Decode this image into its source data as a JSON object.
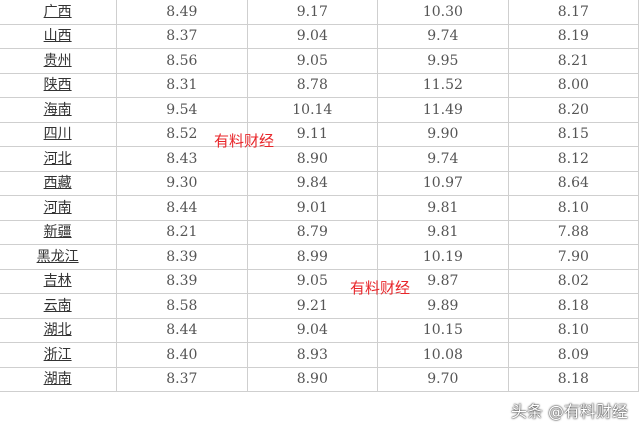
{
  "table": {
    "rows": [
      {
        "name": "广西",
        "values": [
          "8.49",
          "9.17",
          "10.30",
          "8.17"
        ]
      },
      {
        "name": "山西",
        "values": [
          "8.37",
          "9.04",
          "9.74",
          "8.19"
        ]
      },
      {
        "name": "贵州",
        "values": [
          "8.56",
          "9.05",
          "9.95",
          "8.21"
        ]
      },
      {
        "name": "陕西",
        "values": [
          "8.31",
          "8.78",
          "11.52",
          "8.00"
        ]
      },
      {
        "name": "海南",
        "values": [
          "9.54",
          "10.14",
          "11.49",
          "8.20"
        ]
      },
      {
        "name": "四川",
        "values": [
          "8.52",
          "9.11",
          "9.90",
          "8.15"
        ]
      },
      {
        "name": "河北",
        "values": [
          "8.43",
          "8.90",
          "9.74",
          "8.12"
        ]
      },
      {
        "name": "西藏",
        "values": [
          "9.30",
          "9.84",
          "10.97",
          "8.64"
        ]
      },
      {
        "name": "河南",
        "values": [
          "8.44",
          "9.01",
          "9.81",
          "8.10"
        ]
      },
      {
        "name": "新疆",
        "values": [
          "8.21",
          "8.79",
          "9.81",
          "7.88"
        ]
      },
      {
        "name": "黑龙江",
        "values": [
          "8.39",
          "8.99",
          "10.19",
          "7.90"
        ]
      },
      {
        "name": "吉林",
        "values": [
          "8.39",
          "9.05",
          "9.87",
          "8.02"
        ]
      },
      {
        "name": "云南",
        "values": [
          "8.58",
          "9.21",
          "9.89",
          "8.18"
        ]
      },
      {
        "name": "湖北",
        "values": [
          "8.44",
          "9.04",
          "10.15",
          "8.10"
        ]
      },
      {
        "name": "浙江",
        "values": [
          "8.40",
          "8.93",
          "10.08",
          "8.09"
        ]
      },
      {
        "name": "湖南",
        "values": [
          "8.37",
          "8.90",
          "9.70",
          "8.18"
        ]
      }
    ]
  },
  "watermarks": {
    "text1": "有料财经",
    "text2": "有料财经",
    "brand": "头条 @有料财经"
  },
  "colors": {
    "watermark": "#e8262a"
  }
}
